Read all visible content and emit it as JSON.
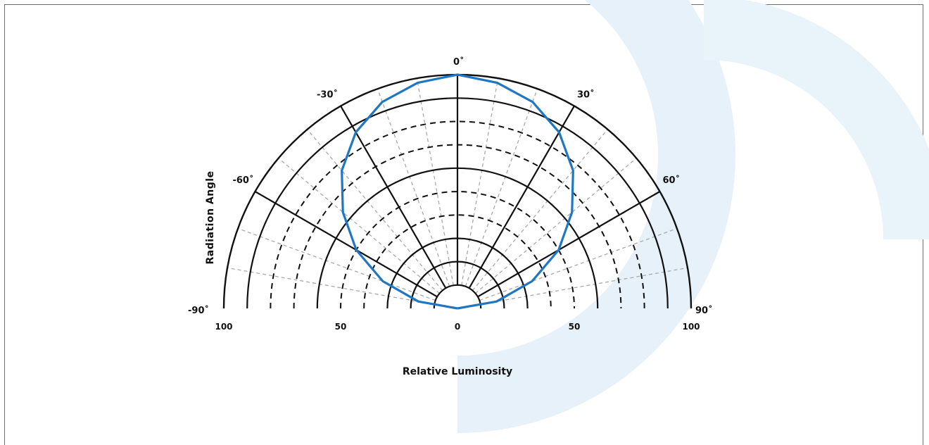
{
  "chart_data": {
    "type": "polar",
    "title": "",
    "xlabel": "Relative Luminosity",
    "ylabel": "Radiation Angle",
    "radial_range": [
      0,
      100
    ],
    "angle_range": [
      -90,
      90
    ],
    "angle_ticks": [
      "-90˚",
      "-60˚",
      "-30˚",
      "0˚",
      "30˚",
      "60˚",
      "90˚"
    ],
    "radial_tick_labels": [
      "100",
      "50",
      "0",
      "50",
      "100"
    ],
    "series": [
      {
        "color": "#1f77c4",
        "angles": [
          -90,
          -80,
          -70,
          -60,
          -50,
          -40,
          -30,
          -20,
          -10,
          0,
          10,
          20,
          30,
          40,
          50,
          60,
          70,
          80,
          90
        ],
        "values": [
          0,
          17,
          34,
          50,
          64,
          77,
          87,
          94,
          98,
          100,
          98,
          94,
          87,
          77,
          64,
          50,
          34,
          17,
          0
        ]
      }
    ],
    "grid": true
  }
}
